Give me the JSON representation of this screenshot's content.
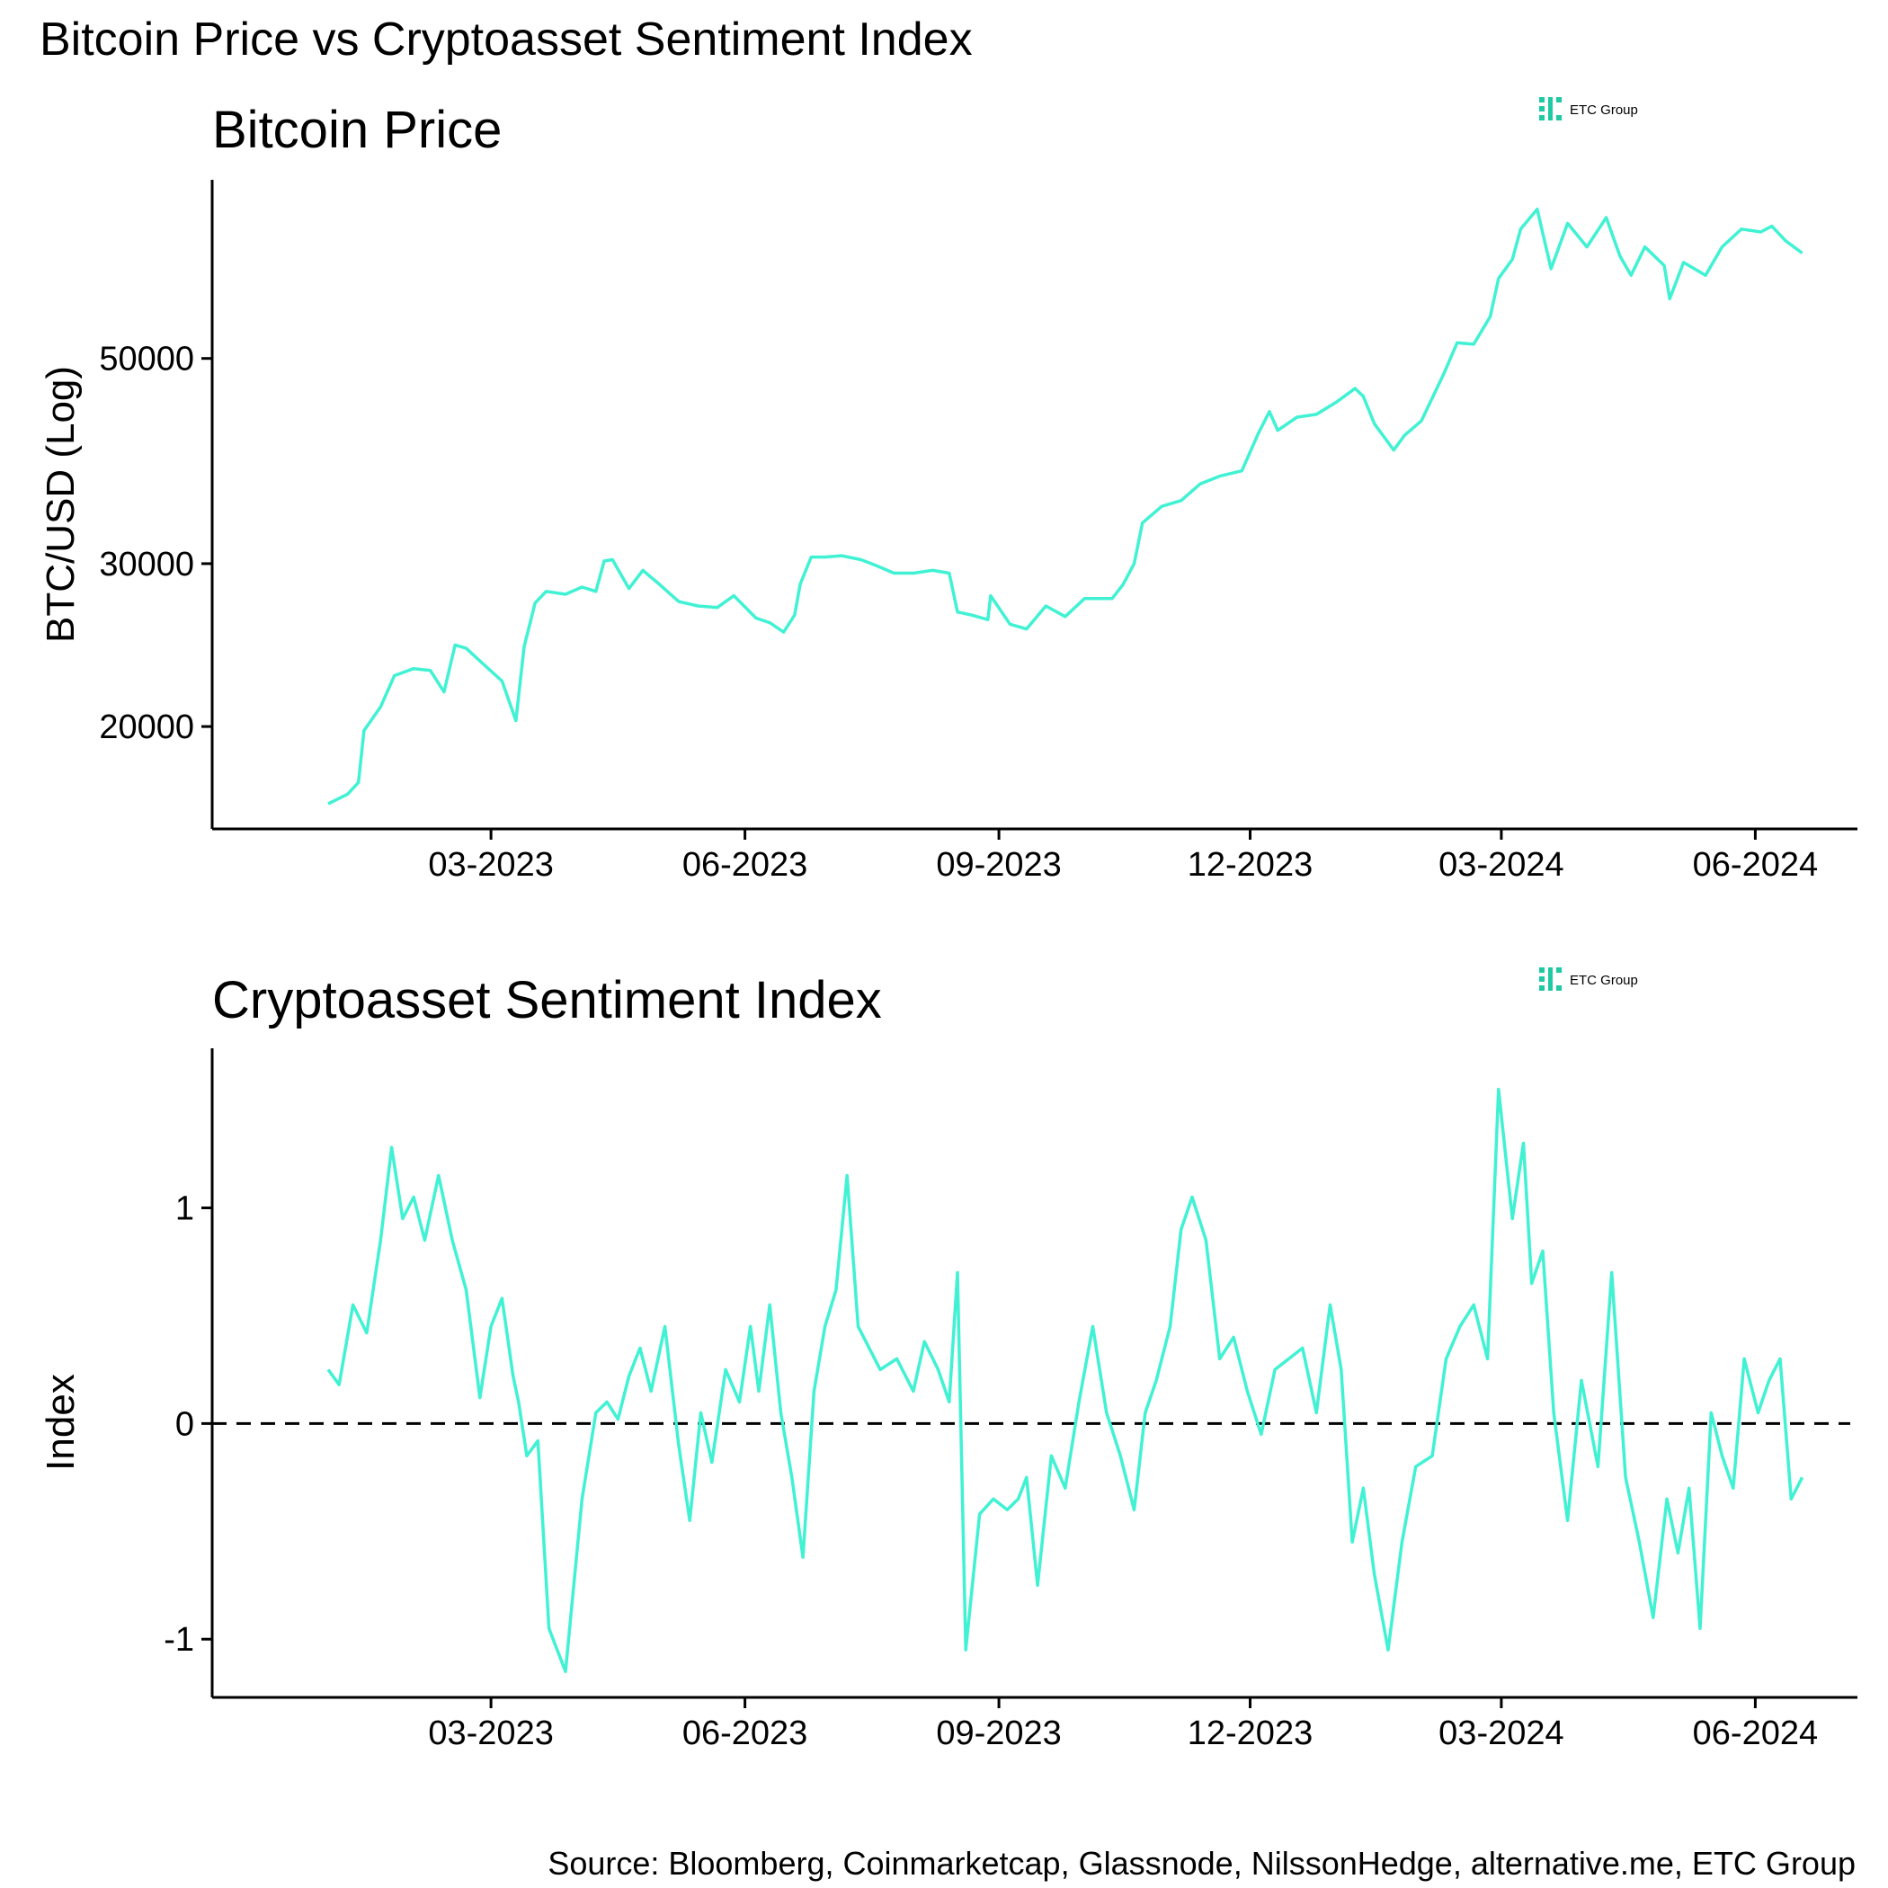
{
  "main_title": "Bitcoin Price vs Cryptoasset Sentiment Index",
  "source": "Source: Bloomberg, Coinmarketcap, Glassnode, NilssonHedge, alternative.me, ETC Group",
  "logo_text": "ETC Group",
  "colors": {
    "line": "#40f2d3",
    "logo": "#1ec9a4",
    "axis": "#000000"
  },
  "chart_data": [
    {
      "type": "line",
      "title": "Bitcoin Price",
      "xlabel": "",
      "ylabel": "BTC/USD (Log)",
      "y_scale": "log",
      "ylim": [
        15500,
        78000
      ],
      "xlim": [
        "2022-11-20",
        "2024-07-08"
      ],
      "x_ticks": [
        "2023-03-01",
        "2023-06-01",
        "2023-09-01",
        "2023-12-01",
        "2024-03-01",
        "2024-06-01"
      ],
      "x_tick_labels": [
        "03-2023",
        "06-2023",
        "09-2023",
        "12-2023",
        "03-2024",
        "06-2024"
      ],
      "y_ticks": [
        20000,
        30000,
        50000
      ],
      "y_tick_labels": [
        "20000",
        "30000",
        "50000"
      ],
      "grid": false,
      "series": [
        {
          "x": [
            "2023-01-01",
            "2023-01-08",
            "2023-01-12",
            "2023-01-14",
            "2023-01-20",
            "2023-01-25",
            "2023-02-01",
            "2023-02-07",
            "2023-02-12",
            "2023-02-16",
            "2023-02-20",
            "2023-02-26",
            "2023-03-05",
            "2023-03-10",
            "2023-03-13",
            "2023-03-17",
            "2023-03-21",
            "2023-03-28",
            "2023-04-03",
            "2023-04-08",
            "2023-04-11",
            "2023-04-14",
            "2023-04-20",
            "2023-04-25",
            "2023-05-01",
            "2023-05-08",
            "2023-05-15",
            "2023-05-22",
            "2023-05-28",
            "2023-06-05",
            "2023-06-10",
            "2023-06-15",
            "2023-06-19",
            "2023-06-21",
            "2023-06-25",
            "2023-06-30",
            "2023-07-06",
            "2023-07-13",
            "2023-07-18",
            "2023-07-25",
            "2023-08-01",
            "2023-08-08",
            "2023-08-14",
            "2023-08-17",
            "2023-08-22",
            "2023-08-28",
            "2023-08-29",
            "2023-09-05",
            "2023-09-11",
            "2023-09-18",
            "2023-09-25",
            "2023-10-02",
            "2023-10-12",
            "2023-10-16",
            "2023-10-20",
            "2023-10-23",
            "2023-10-30",
            "2023-11-06",
            "2023-11-13",
            "2023-11-20",
            "2023-11-28",
            "2023-12-04",
            "2023-12-08",
            "2023-12-11",
            "2023-12-18",
            "2023-12-25",
            "2024-01-01",
            "2024-01-08",
            "2024-01-11",
            "2024-01-15",
            "2024-01-22",
            "2024-01-26",
            "2024-02-01",
            "2024-02-09",
            "2024-02-14",
            "2024-02-20",
            "2024-02-26",
            "2024-02-29",
            "2024-03-05",
            "2024-03-08",
            "2024-03-14",
            "2024-03-19",
            "2024-03-25",
            "2024-04-01",
            "2024-04-08",
            "2024-04-13",
            "2024-04-17",
            "2024-04-22",
            "2024-04-29",
            "2024-05-01",
            "2024-05-06",
            "2024-05-14",
            "2024-05-20",
            "2024-05-27",
            "2024-06-03",
            "2024-06-07",
            "2024-06-12",
            "2024-06-18"
          ],
          "y": [
            16500,
            16900,
            17400,
            19800,
            21000,
            22700,
            23100,
            23000,
            21800,
            24500,
            24300,
            23400,
            22400,
            20300,
            24400,
            27200,
            28000,
            27800,
            28300,
            28000,
            30200,
            30300,
            28200,
            29500,
            28500,
            27300,
            27000,
            26900,
            27700,
            26200,
            25900,
            25300,
            26400,
            28500,
            30500,
            30500,
            30600,
            30300,
            29900,
            29300,
            29300,
            29500,
            29300,
            26600,
            26400,
            26100,
            27700,
            25800,
            25500,
            27000,
            26300,
            27500,
            27500,
            28500,
            30000,
            33200,
            34600,
            35100,
            36600,
            37300,
            37800,
            41500,
            43800,
            41800,
            43200,
            43500,
            44800,
            46400,
            45500,
            42500,
            39800,
            41300,
            42800,
            48000,
            52000,
            51800,
            55500,
            61000,
            64000,
            69000,
            72500,
            62500,
            70000,
            66000,
            71000,
            64500,
            61500,
            66000,
            63000,
            58000,
            63500,
            61500,
            66000,
            69000,
            68500,
            69500,
            67000,
            65000
          ]
        }
      ]
    },
    {
      "type": "line",
      "title": "Cryptoasset Sentiment Index",
      "xlabel": "",
      "ylabel": "Index",
      "ylim": [
        -1.27,
        1.74
      ],
      "xlim": [
        "2022-11-20",
        "2024-07-08"
      ],
      "x_ticks": [
        "2023-03-01",
        "2023-06-01",
        "2023-09-01",
        "2023-12-01",
        "2024-03-01",
        "2024-06-01"
      ],
      "x_tick_labels": [
        "03-2023",
        "06-2023",
        "09-2023",
        "12-2023",
        "03-2024",
        "06-2024"
      ],
      "y_ticks": [
        -1,
        0,
        1
      ],
      "y_tick_labels": [
        "-1",
        "0",
        "1"
      ],
      "reference_line": {
        "y": 0,
        "style": "dashed"
      },
      "grid": false,
      "series": [
        {
          "x": [
            "2023-01-01",
            "2023-01-05",
            "2023-01-10",
            "2023-01-15",
            "2023-01-20",
            "2023-01-24",
            "2023-01-28",
            "2023-02-01",
            "2023-02-05",
            "2023-02-10",
            "2023-02-15",
            "2023-02-20",
            "2023-02-25",
            "2023-03-01",
            "2023-03-05",
            "2023-03-09",
            "2023-03-11",
            "2023-03-14",
            "2023-03-18",
            "2023-03-22",
            "2023-03-28",
            "2023-04-03",
            "2023-04-08",
            "2023-04-12",
            "2023-04-16",
            "2023-04-20",
            "2023-04-24",
            "2023-04-28",
            "2023-05-03",
            "2023-05-08",
            "2023-05-12",
            "2023-05-16",
            "2023-05-20",
            "2023-05-25",
            "2023-05-30",
            "2023-06-03",
            "2023-06-06",
            "2023-06-10",
            "2023-06-14",
            "2023-06-18",
            "2023-06-22",
            "2023-06-26",
            "2023-06-30",
            "2023-07-04",
            "2023-07-08",
            "2023-07-12",
            "2023-07-16",
            "2023-07-20",
            "2023-07-26",
            "2023-08-01",
            "2023-08-05",
            "2023-08-10",
            "2023-08-14",
            "2023-08-17",
            "2023-08-20",
            "2023-08-25",
            "2023-08-30",
            "2023-09-04",
            "2023-09-08",
            "2023-09-11",
            "2023-09-15",
            "2023-09-20",
            "2023-09-25",
            "2023-09-30",
            "2023-10-05",
            "2023-10-10",
            "2023-10-15",
            "2023-10-20",
            "2023-10-24",
            "2023-10-28",
            "2023-11-02",
            "2023-11-06",
            "2023-11-10",
            "2023-11-15",
            "2023-11-20",
            "2023-11-25",
            "2023-11-30",
            "2023-12-05",
            "2023-12-10",
            "2023-12-15",
            "2023-12-20",
            "2023-12-25",
            "2023-12-30",
            "2024-01-03",
            "2024-01-07",
            "2024-01-11",
            "2024-01-15",
            "2024-01-20",
            "2024-01-25",
            "2024-01-30",
            "2024-02-05",
            "2024-02-10",
            "2024-02-15",
            "2024-02-20",
            "2024-02-25",
            "2024-02-29",
            "2024-03-05",
            "2024-03-09",
            "2024-03-12",
            "2024-03-16",
            "2024-03-20",
            "2024-03-25",
            "2024-03-30",
            "2024-04-05",
            "2024-04-10",
            "2024-04-15",
            "2024-04-20",
            "2024-04-25",
            "2024-04-30",
            "2024-05-04",
            "2024-05-08",
            "2024-05-12",
            "2024-05-16",
            "2024-05-20",
            "2024-05-24",
            "2024-05-28",
            "2024-06-02",
            "2024-06-06",
            "2024-06-10",
            "2024-06-14",
            "2024-06-18"
          ],
          "y": [
            0.25,
            0.18,
            0.55,
            0.42,
            0.85,
            1.28,
            0.95,
            1.05,
            0.85,
            1.15,
            0.85,
            0.62,
            0.12,
            0.45,
            0.58,
            0.22,
            0.1,
            -0.15,
            -0.08,
            -0.95,
            -1.15,
            -0.35,
            0.05,
            0.1,
            0.02,
            0.22,
            0.35,
            0.15,
            0.45,
            -0.1,
            -0.45,
            0.05,
            -0.18,
            0.25,
            0.1,
            0.45,
            0.15,
            0.55,
            0.05,
            -0.25,
            -0.62,
            0.15,
            0.45,
            0.62,
            1.15,
            0.45,
            0.35,
            0.25,
            0.3,
            0.15,
            0.38,
            0.25,
            0.1,
            0.7,
            -1.05,
            -0.42,
            -0.35,
            -0.4,
            -0.35,
            -0.25,
            -0.75,
            -0.15,
            -0.3,
            0.1,
            0.45,
            0.05,
            -0.15,
            -0.4,
            0.05,
            0.2,
            0.45,
            0.9,
            1.05,
            0.85,
            0.3,
            0.4,
            0.15,
            -0.05,
            0.25,
            0.3,
            0.35,
            0.05,
            0.55,
            0.25,
            -0.55,
            -0.3,
            -0.7,
            -1.05,
            -0.55,
            -0.2,
            -0.15,
            0.3,
            0.45,
            0.55,
            0.3,
            1.55,
            0.95,
            1.3,
            0.65,
            0.8,
            0.05,
            -0.45,
            0.2,
            -0.2,
            0.7,
            -0.25,
            -0.55,
            -0.9,
            -0.35,
            -0.6,
            -0.3,
            -0.95,
            0.05,
            -0.15,
            -0.3,
            0.3,
            0.05,
            0.2,
            0.3,
            -0.35,
            -0.25
          ]
        }
      ]
    }
  ]
}
